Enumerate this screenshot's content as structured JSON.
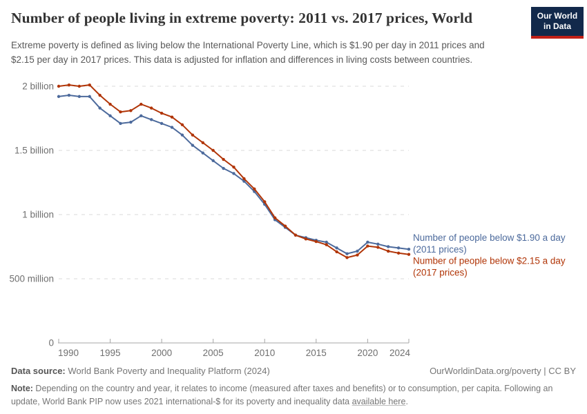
{
  "header": {
    "title": "Number of people living in extreme poverty: 2011 vs. 2017 prices, World",
    "subtitle": "Extreme poverty is defined as living below the International Poverty Line, which is $1.90 per day in 2011 prices and $2.15 per day in 2017 prices. This data is adjusted for inflation and differences in living costs between countries.",
    "logo": {
      "line1": "Our World",
      "line2": "in Data",
      "bg_color": "#12294B",
      "stripe_color": "#C22017"
    }
  },
  "chart_data": {
    "type": "line",
    "title": "Number of people living in extreme poverty: 2011 vs. 2017 prices, World",
    "unit": "people",
    "x": [
      1990,
      1991,
      1992,
      1993,
      1994,
      1995,
      1996,
      1997,
      1998,
      1999,
      2000,
      2001,
      2002,
      2003,
      2004,
      2005,
      2006,
      2007,
      2008,
      2009,
      2010,
      2011,
      2012,
      2013,
      2014,
      2015,
      2016,
      2017,
      2018,
      2019,
      2020,
      2021,
      2022,
      2023,
      2024
    ],
    "series": [
      {
        "name": "Number of people below $1.90 a day (2011 prices)",
        "label_lines": [
          "Number of people below $1.90 a day",
          "(2011 prices)"
        ],
        "color": "#4C6A9C",
        "values_billions": [
          1.92,
          1.93,
          1.92,
          1.92,
          1.83,
          1.77,
          1.71,
          1.72,
          1.77,
          1.74,
          1.71,
          1.68,
          1.62,
          1.54,
          1.48,
          1.42,
          1.36,
          1.32,
          1.26,
          1.18,
          1.08,
          0.96,
          0.9,
          0.84,
          0.82,
          0.8,
          0.785,
          0.74,
          0.695,
          0.715,
          0.785,
          0.77,
          0.75,
          0.74,
          0.73
        ]
      },
      {
        "name": "Number of people below $2.15 a day (2017 prices)",
        "label_lines": [
          "Number of people below $2.15 a day",
          "(2017 prices)"
        ],
        "color": "#B13507",
        "values_billions": [
          2.0,
          2.01,
          2.0,
          2.01,
          1.93,
          1.86,
          1.8,
          1.81,
          1.86,
          1.83,
          1.79,
          1.76,
          1.7,
          1.62,
          1.56,
          1.5,
          1.43,
          1.37,
          1.28,
          1.2,
          1.1,
          0.975,
          0.91,
          0.84,
          0.81,
          0.79,
          0.765,
          0.71,
          0.665,
          0.685,
          0.755,
          0.745,
          0.715,
          0.7,
          0.69
        ]
      }
    ],
    "ylim": [
      0,
      2.0
    ],
    "yticks": [
      {
        "value": 0,
        "label": "0"
      },
      {
        "value": 0.5,
        "label": "500 million"
      },
      {
        "value": 1,
        "label": "1 billion"
      },
      {
        "value": 1.5,
        "label": "1.5 billion"
      },
      {
        "value": 2,
        "label": "2 billion"
      }
    ],
    "xticks": [
      1990,
      1995,
      2000,
      2005,
      2010,
      2015,
      2020,
      2024
    ],
    "grid": "horizontal dashed",
    "legend_position": "right end of lines"
  },
  "footer": {
    "datasource_label": "Data source:",
    "datasource_value": " World Bank Poverty and Inequality Platform (2024)",
    "attribution": "OurWorldinData.org/poverty | CC BY",
    "note_label": "Note:",
    "note_before_link": " Depending on the country and year, it relates to income (measured after taxes and benefits) or to consumption, per capita. Following an update, World Bank PIP now uses 2021 international-$ for its poverty and inequality data ",
    "note_link": "available here",
    "note_after_link": "."
  }
}
